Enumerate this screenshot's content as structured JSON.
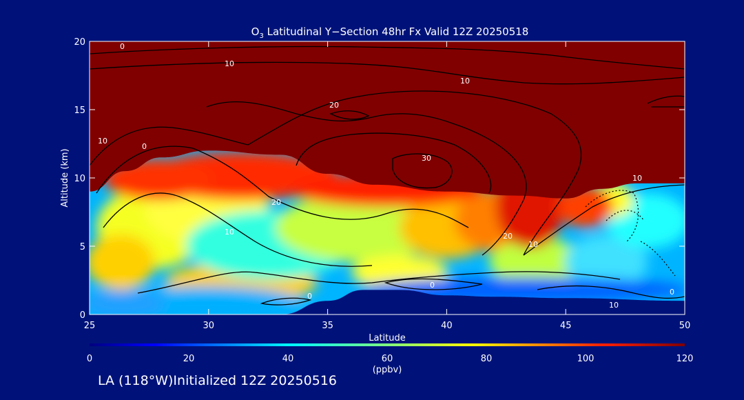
{
  "chart_data": {
    "type": "heatmap",
    "title": "O3 Latitudinal Y-Section 48hr  Fx Valid 12Z 20250518",
    "title_main": "O",
    "title_sub": "3",
    "title_rest": " Latitudinal Y−Section 48hr  Fx Valid 12Z 20250518",
    "xlabel": "Latitude",
    "ylabel": "Altitude (km)",
    "xlim": [
      25,
      50
    ],
    "ylim": [
      0,
      20
    ],
    "xticks": [
      "25",
      "30",
      "35",
      "40",
      "45",
      "50"
    ],
    "yticks": [
      "0",
      "5",
      "10",
      "15",
      "20"
    ],
    "colorbar": {
      "min": 0,
      "max": 120,
      "ticks": [
        "0",
        "20",
        "40",
        "60",
        "80",
        "100",
        "120"
      ],
      "unit": "(ppbv)"
    },
    "contour_labels": [
      "0",
      "10",
      "10",
      "20",
      "10",
      "0",
      "30",
      "20",
      "10",
      "20",
      "10",
      "10",
      "0",
      "0",
      "10",
      "0"
    ],
    "tropopause_km": [
      {
        "lat": 25,
        "alt": 9.0
      },
      {
        "lat": 26.5,
        "alt": 10.5
      },
      {
        "lat": 28,
        "alt": 11.5
      },
      {
        "lat": 30,
        "alt": 12.0
      },
      {
        "lat": 33,
        "alt": 11.7
      },
      {
        "lat": 35,
        "alt": 10.3
      },
      {
        "lat": 37,
        "alt": 9.5
      },
      {
        "lat": 40,
        "alt": 9.0
      },
      {
        "lat": 43,
        "alt": 8.7
      },
      {
        "lat": 45,
        "alt": 8.5
      },
      {
        "lat": 46.5,
        "alt": 9.2
      },
      {
        "lat": 48,
        "alt": 9.6
      },
      {
        "lat": 50,
        "alt": 9.6
      }
    ],
    "terrain_km": [
      {
        "lat": 25,
        "alt": 0
      },
      {
        "lat": 33,
        "alt": 0
      },
      {
        "lat": 35,
        "alt": 1.0
      },
      {
        "lat": 36.5,
        "alt": 1.8
      },
      {
        "lat": 38,
        "alt": 1.8
      },
      {
        "lat": 40,
        "alt": 1.4
      },
      {
        "lat": 42,
        "alt": 1.3
      },
      {
        "lat": 45,
        "alt": 1.2
      },
      {
        "lat": 50,
        "alt": 1.0
      }
    ]
  },
  "footer": "LA (118°W)Initialized 12Z 20250516",
  "colors": {
    "background": "#00127a",
    "stratosphere": "#800000",
    "terrain": "#00127a"
  }
}
